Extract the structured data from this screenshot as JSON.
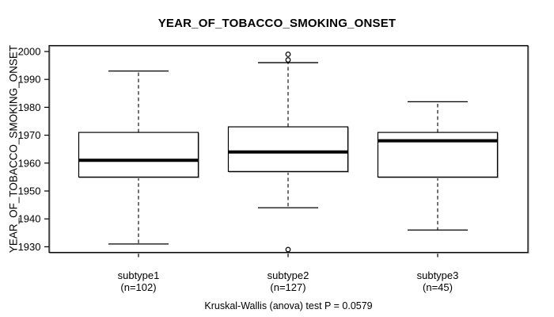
{
  "title": "YEAR_OF_TOBACCO_SMOKING_ONSET",
  "y_axis": {
    "label": "YEAR_OF_TOBACCO_SMOKING_ONSET"
  },
  "x_axis": {
    "groups": [
      {
        "label": "subtype1",
        "count_label": "(n=102)"
      },
      {
        "label": "subtype2",
        "count_label": "(n=127)"
      },
      {
        "label": "subtype3",
        "count_label": "(n=45)"
      }
    ]
  },
  "caption": "Kruskal-Wallis (anova) test P = 0.0579",
  "chart_data": {
    "type": "boxplot",
    "title": "YEAR_OF_TOBACCO_SMOKING_ONSET",
    "xlabel": "",
    "ylabel": "YEAR_OF_TOBACCO_SMOKING_ONSET",
    "ylim": [
      1928,
      2002
    ],
    "yticks": [
      1930,
      1940,
      1950,
      1960,
      1970,
      1980,
      1990,
      2000
    ],
    "grid": false,
    "legend": false,
    "categories": [
      "subtype1 (n=102)",
      "subtype2 (n=127)",
      "subtype3 (n=45)"
    ],
    "series": [
      {
        "name": "subtype1",
        "n": 102,
        "whisker_low": 1931,
        "q1": 1955,
        "median": 1961,
        "q3": 1971,
        "whisker_high": 1993,
        "outliers": []
      },
      {
        "name": "subtype2",
        "n": 127,
        "whisker_low": 1944,
        "q1": 1957,
        "median": 1964,
        "q3": 1973,
        "whisker_high": 1996,
        "outliers": [
          1999,
          1997,
          1929
        ]
      },
      {
        "name": "subtype3",
        "n": 45,
        "whisker_low": 1936,
        "q1": 1955,
        "median": 1968,
        "q3": 1971,
        "whisker_high": 1982,
        "outliers": []
      }
    ],
    "stat_test": {
      "name": "Kruskal-Wallis (anova) test",
      "p_value": 0.0579
    },
    "colors": {
      "box_fill": "#ffffff",
      "stroke": "#000000",
      "shadow": "#b4b4b4"
    }
  }
}
